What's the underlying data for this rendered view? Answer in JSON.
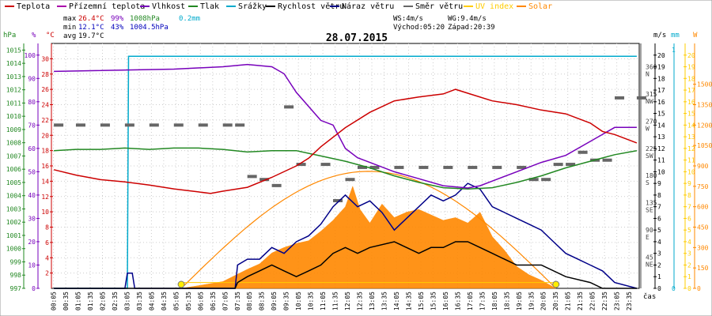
{
  "chart_data": {
    "type": "line",
    "title": "28.07.2015",
    "legend": [
      {
        "name": "Teplota",
        "color": "#cc0000"
      },
      {
        "name": "Přízemní teplota",
        "color": "#aa00aa"
      },
      {
        "name": "Vlhkost",
        "color": "#7700bb"
      },
      {
        "name": "Tlak",
        "color": "#228822"
      },
      {
        "name": "Srážky",
        "color": "#00aacc"
      },
      {
        "name": "Rychlost větru",
        "color": "#000000"
      },
      {
        "name": "Náraz větru",
        "color": "#000088"
      },
      {
        "name": "Směr větru",
        "color": "#666666"
      },
      {
        "name": "UV index",
        "color": "#ffcc00"
      },
      {
        "name": "Solar",
        "color": "#ff8800"
      }
    ],
    "stats": {
      "max_label": "max",
      "min_label": "min",
      "avg_label": "avg",
      "max_temp": "26.4°C",
      "max_hum": "99%",
      "max_press": "1008hPa",
      "max_rain": "0.2mm",
      "min_temp": "12.1°C",
      "min_hum": "43%",
      "min_press": "1004.5hPa",
      "avg_temp": "19.7°C",
      "ws": "WS:4m/s",
      "wg": "WG:9.4m/s",
      "sunrise": "Východ:05:20",
      "sunset": "Západ:20:39"
    },
    "axes": {
      "hpa": {
        "unit": "hPa",
        "ticks": [
          997,
          998,
          999,
          1000,
          1001,
          1002,
          1003,
          1004,
          1005,
          1006,
          1007,
          1008,
          1009,
          1010,
          1011,
          1012,
          1013,
          1014,
          1015
        ]
      },
      "pct": {
        "unit": "%",
        "ticks": [
          0,
          10,
          20,
          30,
          40,
          50,
          60,
          70,
          80,
          90,
          100
        ]
      },
      "temp": {
        "unit": "°C",
        "ticks": [
          2,
          4,
          6,
          8,
          10,
          12,
          14,
          16,
          18,
          20,
          22,
          24,
          26,
          28,
          30
        ]
      },
      "dir": {
        "ticks": [
          "NE\n45",
          "E\n90",
          "SE\n135",
          "S\n180",
          "SW\n225",
          "W\n270",
          "NW\n315",
          "N\n360"
        ]
      },
      "ms": {
        "unit": "m/s",
        "ticks": [
          0,
          1,
          2,
          3,
          4,
          5,
          6,
          7,
          8,
          9,
          10,
          11,
          12,
          13,
          14,
          15,
          16,
          17,
          18,
          19,
          20
        ]
      },
      "mm": {
        "unit": "mm",
        "ticks": [
          0,
          1
        ]
      },
      "uv": {
        "ticks": [
          0,
          1,
          2,
          3,
          4,
          5,
          6,
          7,
          8,
          9,
          10,
          11,
          12,
          13,
          14,
          15,
          16,
          17,
          18,
          19,
          20
        ]
      },
      "w": {
        "unit": "W",
        "ticks": [
          0,
          150,
          300,
          450,
          600,
          750,
          900,
          1050,
          1200,
          1350,
          1500
        ]
      },
      "x_label": "čas",
      "x_ticks": [
        "00:05",
        "00:35",
        "01:05",
        "01:35",
        "02:05",
        "02:35",
        "03:05",
        "03:35",
        "04:05",
        "04:35",
        "05:05",
        "05:35",
        "06:05",
        "06:35",
        "07:05",
        "07:35",
        "08:05",
        "08:35",
        "09:05",
        "09:35",
        "10:05",
        "10:35",
        "11:05",
        "11:35",
        "12:05",
        "12:35",
        "13:05",
        "13:35",
        "14:05",
        "14:35",
        "15:05",
        "15:35",
        "16:05",
        "16:35",
        "17:05",
        "17:35",
        "18:05",
        "18:35",
        "19:05",
        "19:35",
        "20:05",
        "20:35",
        "21:05",
        "21:35",
        "22:05",
        "22:35",
        "23:05",
        "23:35"
      ]
    },
    "temperature_C": [
      [
        0.1,
        15.5
      ],
      [
        1,
        14.8
      ],
      [
        2,
        14.2
      ],
      [
        3,
        13.9
      ],
      [
        4,
        13.5
      ],
      [
        5,
        13.0
      ],
      [
        6,
        12.6
      ],
      [
        6.5,
        12.4
      ],
      [
        7,
        12.7
      ],
      [
        8,
        13.2
      ],
      [
        9,
        14.5
      ],
      [
        10,
        16.0
      ],
      [
        10.5,
        17.0
      ],
      [
        11,
        18.5
      ],
      [
        12,
        21.0
      ],
      [
        13,
        23.0
      ],
      [
        14,
        24.5
      ],
      [
        15,
        25.0
      ],
      [
        16,
        25.4
      ],
      [
        16.5,
        26.0
      ],
      [
        17,
        25.5
      ],
      [
        18,
        24.5
      ],
      [
        19,
        24.0
      ],
      [
        20,
        23.3
      ],
      [
        21,
        22.8
      ],
      [
        22,
        21.6
      ],
      [
        22.5,
        20.5
      ],
      [
        23,
        20.1
      ],
      [
        23.9,
        19.0
      ]
    ],
    "humidity_pct": [
      [
        0.1,
        93
      ],
      [
        5,
        94
      ],
      [
        7,
        95
      ],
      [
        8,
        96
      ],
      [
        9,
        95
      ],
      [
        9.5,
        92
      ],
      [
        10,
        84
      ],
      [
        10.5,
        78
      ],
      [
        11,
        72
      ],
      [
        11.5,
        70
      ],
      [
        12,
        60
      ],
      [
        12.5,
        56
      ],
      [
        13,
        54
      ],
      [
        14,
        50
      ],
      [
        15,
        47
      ],
      [
        16,
        44
      ],
      [
        17,
        43
      ],
      [
        17.5,
        44
      ],
      [
        18,
        46
      ],
      [
        19,
        50
      ],
      [
        20,
        54
      ],
      [
        21,
        57
      ],
      [
        22,
        63
      ],
      [
        22.5,
        66
      ],
      [
        23,
        69
      ],
      [
        23.9,
        69
      ]
    ],
    "pressure_hPa": [
      [
        0.1,
        1007.4
      ],
      [
        1,
        1007.5
      ],
      [
        2,
        1007.5
      ],
      [
        3,
        1007.6
      ],
      [
        4,
        1007.5
      ],
      [
        5,
        1007.6
      ],
      [
        6,
        1007.6
      ],
      [
        7,
        1007.5
      ],
      [
        8,
        1007.3
      ],
      [
        9,
        1007.4
      ],
      [
        10,
        1007.4
      ],
      [
        11,
        1007.0
      ],
      [
        12,
        1006.6
      ],
      [
        13,
        1006.1
      ],
      [
        14,
        1005.5
      ],
      [
        15,
        1005.0
      ],
      [
        16,
        1004.6
      ],
      [
        17,
        1004.5
      ],
      [
        18,
        1004.6
      ],
      [
        19,
        1005.0
      ],
      [
        20,
        1005.5
      ],
      [
        21,
        1006.1
      ],
      [
        22,
        1006.6
      ],
      [
        23,
        1007.1
      ],
      [
        23.9,
        1007.4
      ]
    ],
    "wind_speed_ms": [
      [
        0.1,
        0
      ],
      [
        7.5,
        0
      ],
      [
        7.6,
        0.5
      ],
      [
        8,
        1
      ],
      [
        8.5,
        1.5
      ],
      [
        9,
        2
      ],
      [
        9.5,
        1.5
      ],
      [
        10,
        1
      ],
      [
        10.5,
        1.5
      ],
      [
        11,
        2
      ],
      [
        11.5,
        3
      ],
      [
        12,
        3.5
      ],
      [
        12.5,
        3
      ],
      [
        13,
        3.5
      ],
      [
        14,
        4
      ],
      [
        14.5,
        3.5
      ],
      [
        15,
        3
      ],
      [
        15.5,
        3.5
      ],
      [
        16,
        3.5
      ],
      [
        16.5,
        4
      ],
      [
        17,
        4
      ],
      [
        17.5,
        3.5
      ],
      [
        18,
        3
      ],
      [
        18.5,
        2.5
      ],
      [
        19,
        2
      ],
      [
        20,
        2
      ],
      [
        21,
        1
      ],
      [
        22,
        0.5
      ],
      [
        22.5,
        0
      ],
      [
        23.9,
        0
      ]
    ],
    "wind_gust_ms": [
      [
        0.1,
        0
      ],
      [
        3,
        0
      ],
      [
        3.1,
        1.3
      ],
      [
        3.3,
        1.3
      ],
      [
        3.4,
        0
      ],
      [
        7.5,
        0
      ],
      [
        7.6,
        2
      ],
      [
        8,
        2.5
      ],
      [
        8.5,
        2.5
      ],
      [
        9,
        3.5
      ],
      [
        9.5,
        3
      ],
      [
        10,
        4
      ],
      [
        10.5,
        4.5
      ],
      [
        11,
        5.5
      ],
      [
        11.5,
        7
      ],
      [
        12,
        8
      ],
      [
        12.5,
        7
      ],
      [
        13,
        7.5
      ],
      [
        13.5,
        6.5
      ],
      [
        14,
        5
      ],
      [
        14.5,
        6
      ],
      [
        15,
        7
      ],
      [
        15.5,
        8
      ],
      [
        16,
        7.5
      ],
      [
        16.5,
        8
      ],
      [
        17,
        9
      ],
      [
        17.5,
        8.5
      ],
      [
        18,
        7
      ],
      [
        18.5,
        6.5
      ],
      [
        19,
        6
      ],
      [
        19.5,
        5.5
      ],
      [
        20,
        5
      ],
      [
        20.5,
        4
      ],
      [
        21,
        3
      ],
      [
        21.5,
        2.5
      ],
      [
        22,
        2
      ],
      [
        22.5,
        1.5
      ],
      [
        23,
        0.5
      ],
      [
        23.9,
        0
      ]
    ],
    "wind_dir_deg": [
      [
        0.1,
        270
      ],
      [
        1,
        270
      ],
      [
        2,
        270
      ],
      [
        3,
        270
      ],
      [
        4,
        270
      ],
      [
        5,
        270
      ],
      [
        6,
        270
      ],
      [
        7,
        270
      ],
      [
        7.5,
        270
      ],
      [
        8,
        185
      ],
      [
        8.5,
        180
      ],
      [
        9,
        170
      ],
      [
        9.5,
        300
      ],
      [
        10,
        205
      ],
      [
        11,
        205
      ],
      [
        11.5,
        145
      ],
      [
        12,
        180
      ],
      [
        12.5,
        200
      ],
      [
        13,
        200
      ],
      [
        14,
        200
      ],
      [
        15,
        200
      ],
      [
        16,
        200
      ],
      [
        17,
        200
      ],
      [
        18,
        200
      ],
      [
        19,
        200
      ],
      [
        19.5,
        180
      ],
      [
        20,
        180
      ],
      [
        20.5,
        205
      ],
      [
        21,
        205
      ],
      [
        21.5,
        225
      ],
      [
        22,
        212
      ],
      [
        22.5,
        212
      ],
      [
        23,
        315
      ],
      [
        23.9,
        315
      ]
    ],
    "rain_mm": [
      [
        0.1,
        0
      ],
      [
        3.1,
        0
      ],
      [
        3.15,
        0.2
      ],
      [
        23.9,
        0.2
      ]
    ],
    "solar_Wm2": [
      [
        5.3,
        0
      ],
      [
        6,
        20
      ],
      [
        7,
        50
      ],
      [
        8,
        140
      ],
      [
        8.5,
        180
      ],
      [
        9,
        260
      ],
      [
        9.5,
        300
      ],
      [
        10,
        330
      ],
      [
        10.5,
        350
      ],
      [
        11,
        420
      ],
      [
        11.5,
        500
      ],
      [
        12,
        600
      ],
      [
        12.3,
        750
      ],
      [
        12.6,
        580
      ],
      [
        13,
        480
      ],
      [
        13.5,
        620
      ],
      [
        14,
        520
      ],
      [
        14.5,
        560
      ],
      [
        15,
        580
      ],
      [
        15.5,
        540
      ],
      [
        16,
        500
      ],
      [
        16.5,
        520
      ],
      [
        17,
        480
      ],
      [
        17.5,
        560
      ],
      [
        18,
        380
      ],
      [
        18.5,
        280
      ],
      [
        19,
        160
      ],
      [
        19.5,
        100
      ],
      [
        20,
        60
      ],
      [
        20.6,
        0
      ]
    ],
    "uv_index": [
      [
        5.3,
        0.5
      ],
      [
        20.6,
        0.5
      ]
    ]
  }
}
